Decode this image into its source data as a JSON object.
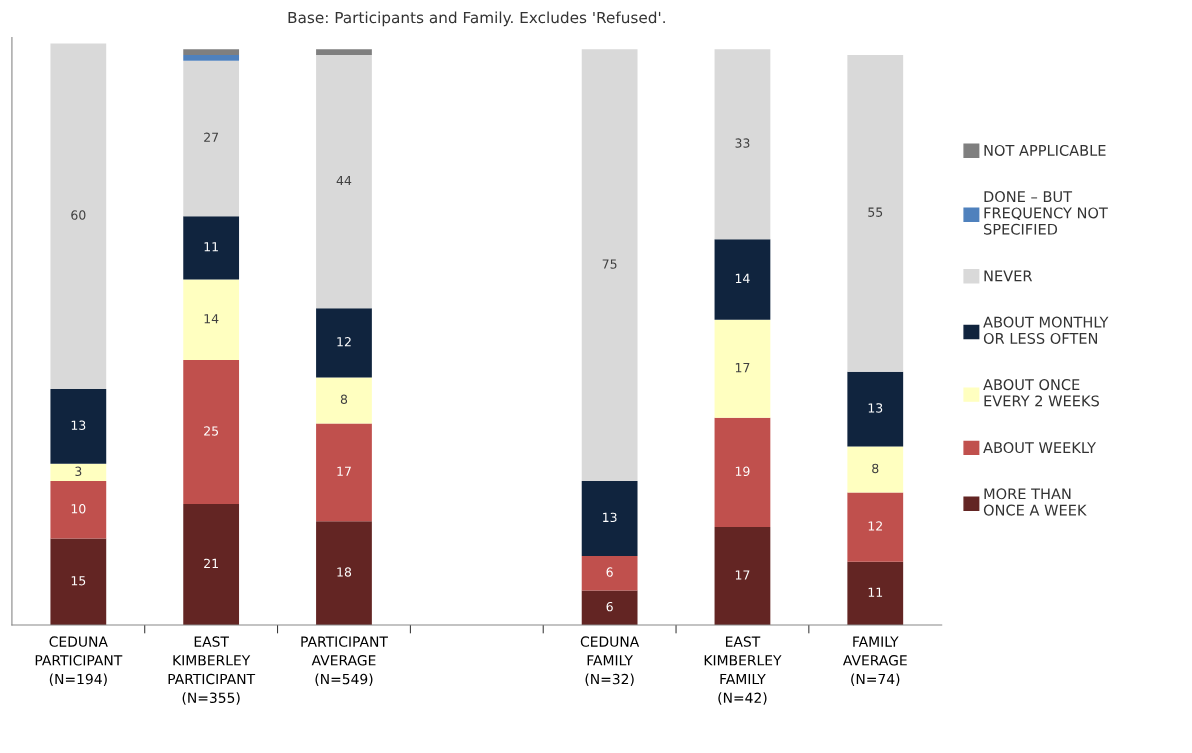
{
  "chart_data": {
    "type": "bar",
    "stacked": true,
    "title": "Base: Participants and Family. Excludes 'Refused'.",
    "categories": [
      "CEDUNA\nPARTICIPANT\n(N=194)",
      "EAST\nKIMBERLEY\nPARTICIPANT\n(N=355)",
      "PARTICIPANT\nAVERAGE\n(N=549)",
      null,
      "CEDUNA\nFAMILY\n(N=32)",
      "EAST\nKIMBERLEY\nFAMILY\n(N=42)",
      "FAMILY\nAVERAGE\n(N=74)"
    ],
    "series": [
      {
        "name": "MORE THAN\nONCE A WEEK",
        "color": "#632523",
        "values": [
          15,
          21,
          18,
          null,
          6,
          17,
          11
        ]
      },
      {
        "name": "ABOUT WEEKLY",
        "color": "#c0504d",
        "values": [
          10,
          25,
          17,
          null,
          6,
          19,
          12
        ]
      },
      {
        "name": "ABOUT ONCE\nEVERY 2 WEEKS",
        "color": "#ffffc0",
        "values": [
          3,
          14,
          8,
          null,
          null,
          17,
          8
        ]
      },
      {
        "name": "ABOUT MONTHLY\nOR LESS OFTEN",
        "color": "#10243e",
        "values": [
          13,
          11,
          12,
          null,
          13,
          14,
          13
        ]
      },
      {
        "name": "NEVER",
        "color": "#d9d9d9",
        "values": [
          60,
          27,
          44,
          null,
          75,
          33,
          55
        ]
      },
      {
        "name": "DONE – BUT\nFREQUENCY NOT\nSPECIFIED",
        "color": "#4f81bd",
        "values": [
          null,
          1,
          null,
          null,
          null,
          null,
          null
        ],
        "value_labels": [
          null,
          null,
          null,
          null,
          null,
          null,
          null
        ]
      },
      {
        "name": "NOT APPLICABLE",
        "color": "#7f7f7f",
        "values": [
          null,
          1,
          1,
          null,
          null,
          null,
          null
        ],
        "value_labels": [
          null,
          null,
          null,
          null,
          null,
          null,
          null
        ]
      }
    ],
    "data_labels": true,
    "ylim": [
      0,
      102
    ],
    "tick_labels": "x",
    "legend": "right",
    "grid": false
  }
}
